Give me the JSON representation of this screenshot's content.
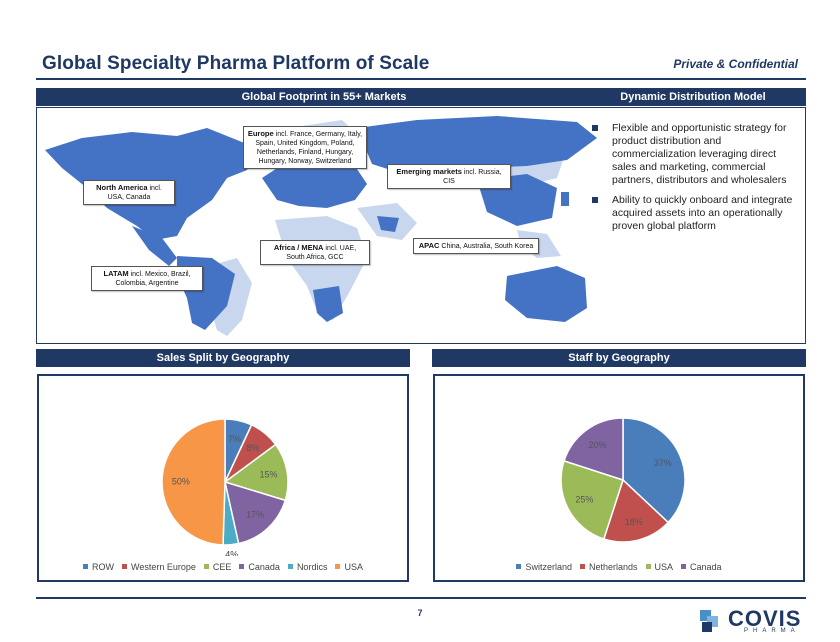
{
  "header": {
    "title": "Global Specialty Pharma Platform of Scale",
    "confidential": "Private & Confidential"
  },
  "sections": {
    "footprint": "Global Footprint in 55+ Markets",
    "distribution": "Dynamic Distribution Model",
    "sales": "Sales Split by Geography",
    "staff": "Staff by Geography"
  },
  "regions": [
    {
      "name": "North America",
      "detail": "incl. USA, Canada"
    },
    {
      "name": "Europe",
      "detail": "incl. France, Germany, Italy, Spain, United Kingdom, Poland, Netherlands, Finland, Hungary, Hungary, Norway, Switzerland"
    },
    {
      "name": "Emerging markets",
      "detail": "incl. Russia, CIS"
    },
    {
      "name": "Africa / MENA",
      "detail": "incl. UAE, South Africa, GCC"
    },
    {
      "name": "APAC",
      "detail": "China, Australia, South Korea"
    },
    {
      "name": "LATAM",
      "detail": "incl. Mexico, Brazil, Colombia, Argentine"
    }
  ],
  "bullets": [
    "Flexible and opportunistic strategy for product distribution and commercialization leveraging direct sales and marketing, commercial partners, distributors and wholesalers",
    "Ability to quickly onboard and integrate acquired assets into an operationally proven global platform"
  ],
  "chart_data": [
    {
      "type": "pie",
      "title": "Sales Split by Geography",
      "categories": [
        "ROW",
        "Western Europe",
        "CEE",
        "Canada",
        "Nordics",
        "USA"
      ],
      "values": [
        7,
        8,
        15,
        17,
        4,
        50
      ],
      "labels": [
        "7%",
        "8%",
        "15%",
        "17%",
        "4%",
        "50%"
      ],
      "colors": [
        "#4a7ebb",
        "#c0504d",
        "#9bbb59",
        "#8064a2",
        "#4bacc6",
        "#f79646"
      ],
      "legend": "bottom"
    },
    {
      "type": "pie",
      "title": "Staff by Geography",
      "categories": [
        "Switzerland",
        "Netherlands",
        "USA",
        "Canada"
      ],
      "values": [
        37,
        18,
        25,
        20
      ],
      "labels": [
        "37%",
        "18%",
        "25%",
        "20%"
      ],
      "colors": [
        "#4a7ebb",
        "#c0504d",
        "#9bbb59",
        "#8064a2"
      ],
      "legend": "bottom"
    }
  ],
  "footer": {
    "page": "7",
    "logo": "COVIS",
    "logo_sub": "PHARMA"
  },
  "colors": {
    "navy": "#1f3864",
    "map_dark": "#4472c4",
    "map_light": "#c9d7ee"
  }
}
